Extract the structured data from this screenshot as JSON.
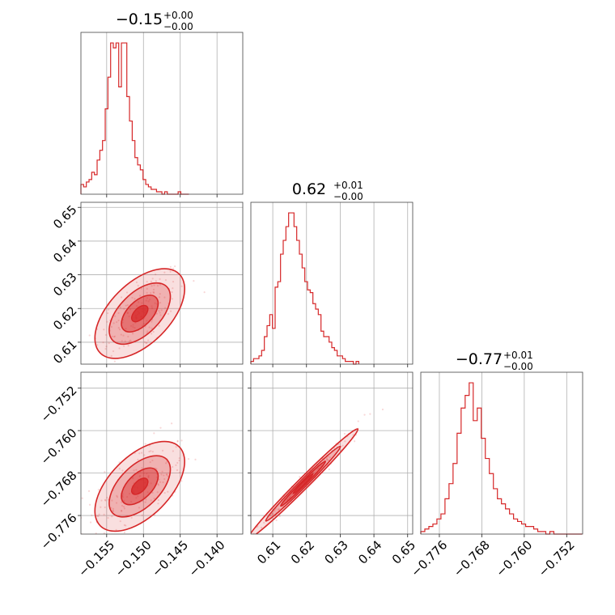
{
  "chart_data": {
    "type": "corner",
    "color": "#d62728",
    "parameters": [
      {
        "range": [
          -0.1585,
          -0.1365
        ],
        "ticks": [
          -0.155,
          -0.15,
          -0.145,
          -0.14
        ],
        "tick_labels": [
          "−0.155",
          "−0.150",
          "−0.145",
          "−0.140"
        ],
        "title": {
          "value": "−0.15",
          "plus": "+0.00",
          "minus": "−0.00"
        }
      },
      {
        "range": [
          0.6035,
          0.6515
        ],
        "ticks": [
          0.61,
          0.62,
          0.63,
          0.64,
          0.65
        ],
        "tick_labels": [
          "0.61",
          "0.62",
          "0.63",
          "0.64",
          "0.65"
        ],
        "title": {
          "value": "0.62",
          "plus": "+0.01",
          "minus": "−0.00"
        }
      },
      {
        "range": [
          -0.7795,
          -0.749
        ],
        "ticks": [
          -0.776,
          -0.768,
          -0.76,
          -0.752
        ],
        "tick_labels": [
          "−0.776",
          "−0.768",
          "−0.760",
          "−0.752"
        ],
        "title": {
          "value": "−0.77",
          "plus": "+0.01",
          "minus": "−0.00"
        }
      }
    ],
    "histograms": [
      {
        "param": 0,
        "bin_width": 0.000367,
        "start": -0.1585,
        "counts": [
          4,
          3,
          5,
          6,
          9,
          8,
          14,
          18,
          22,
          35,
          48,
          62,
          60,
          62,
          44,
          62,
          62,
          40,
          30,
          22,
          15,
          12,
          10,
          6,
          4,
          3,
          2,
          2,
          1,
          1,
          0,
          1,
          0,
          0,
          0,
          0,
          1,
          0,
          0,
          0
        ]
      },
      {
        "param": 1,
        "bin_width": 0.0008,
        "start": 0.6035,
        "counts": [
          1,
          2,
          2,
          3,
          5,
          10,
          14,
          18,
          13,
          28,
          30,
          40,
          45,
          50,
          55,
          55,
          50,
          45,
          40,
          35,
          30,
          27,
          26,
          22,
          20,
          18,
          12,
          10,
          10,
          8,
          6,
          5,
          3,
          3,
          2,
          1,
          1,
          1,
          0,
          1
        ]
      },
      {
        "param": 2,
        "bin_width": 0.00076,
        "start": -0.7795,
        "counts": [
          1,
          2,
          3,
          4,
          6,
          8,
          14,
          20,
          28,
          40,
          50,
          55,
          60,
          45,
          50,
          38,
          30,
          24,
          18,
          14,
          12,
          10,
          8,
          6,
          5,
          4,
          3,
          3,
          2,
          1,
          1,
          0,
          1,
          0,
          0,
          0,
          0,
          0,
          0,
          0
        ]
      }
    ],
    "pairs": [
      {
        "x_param": 0,
        "y_param": 1,
        "center": [
          -0.1505,
          0.6185
        ],
        "correlation": 0.55
      },
      {
        "x_param": 0,
        "y_param": 2,
        "center": [
          -0.1505,
          -0.7705
        ],
        "correlation": 0.55
      },
      {
        "x_param": 1,
        "y_param": 2,
        "center": [
          0.619,
          -0.77
        ],
        "correlation": 0.99
      }
    ],
    "grid": true
  }
}
